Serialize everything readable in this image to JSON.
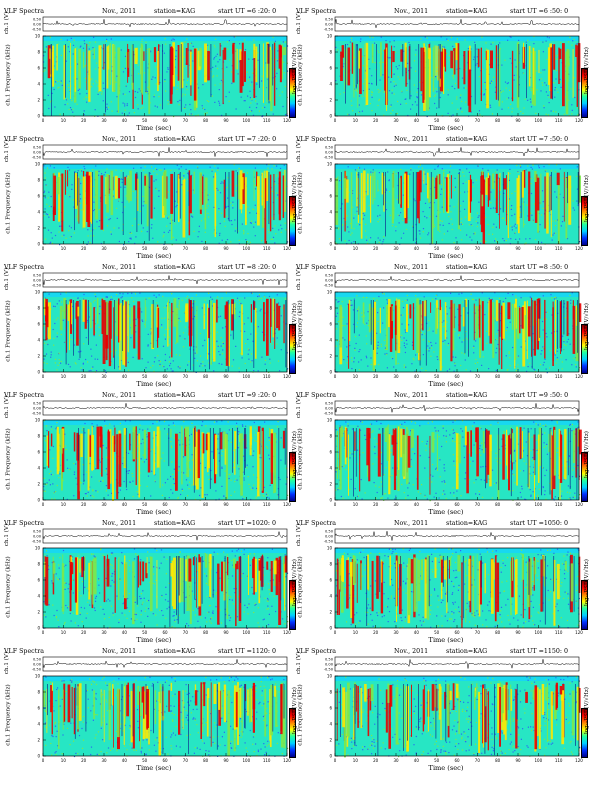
{
  "panel_titles": {
    "label": "VLF Spectra",
    "date": "Nov., 2011",
    "station": "station=KAG"
  },
  "axes": {
    "timeseries_ylabel": "ch.1 (V)",
    "spectrum_ylabel": "ch.1  Frequency (kHz)",
    "xlabel": "Time (sec)",
    "colorbar_label": "log₁₀PSD(V/√Hz)"
  },
  "colors": {
    "background_low": "#27e6c4",
    "band_top": "#18d8f0",
    "mid": "#7ee84a",
    "high": "#ffe800",
    "peak": "#e80000",
    "dark": "#0a1e8c"
  },
  "chart_data": [
    {
      "type": "heatmap",
      "title": "VLF Spectra  Nov., 2011  station=KAG  start UT =6 :20: 0",
      "start_ut": "start UT =6 :20: 0",
      "x_range": [
        0,
        120
      ],
      "y_range": [
        0,
        10
      ],
      "xlabel": "Time (sec)",
      "ylabel": "ch.1 Frequency (kHz)",
      "ts_ylim": [
        -0.5,
        0.5
      ],
      "xticks": [
        0,
        10,
        20,
        30,
        40,
        50,
        60,
        70,
        80,
        90,
        100,
        110,
        120
      ],
      "yticks": [
        0,
        2,
        4,
        6,
        8,
        10
      ],
      "ts_ticks": [
        "0.50",
        "0.00",
        "-0.50"
      ],
      "seed": 11
    },
    {
      "type": "heatmap",
      "title": "VLF Spectra  Nov., 2011  station=KAG  start UT =6 :50: 0",
      "start_ut": "start UT =6 :50: 0",
      "x_range": [
        0,
        120
      ],
      "y_range": [
        0,
        10
      ],
      "xlabel": "Time (sec)",
      "ylabel": "ch.1 Frequency (kHz)",
      "ts_ylim": [
        -0.5,
        0.5
      ],
      "xticks": [
        0,
        10,
        20,
        30,
        40,
        50,
        60,
        70,
        80,
        90,
        100,
        110,
        120
      ],
      "yticks": [
        0,
        2,
        4,
        6,
        8,
        10
      ],
      "ts_ticks": [
        "0.50",
        "0.00",
        "-0.50"
      ],
      "seed": 23
    },
    {
      "type": "heatmap",
      "title": "VLF Spectra  Nov., 2011  station=KAG  start UT =7 :20: 0",
      "start_ut": "start UT =7 :20: 0",
      "x_range": [
        0,
        120
      ],
      "y_range": [
        0,
        10
      ],
      "xlabel": "Time (sec)",
      "ylabel": "ch.1 Frequency (kHz)",
      "ts_ylim": [
        -0.5,
        0.5
      ],
      "xticks": [
        0,
        10,
        20,
        30,
        40,
        50,
        60,
        70,
        80,
        90,
        100,
        110,
        120
      ],
      "yticks": [
        0,
        2,
        4,
        6,
        8,
        10
      ],
      "ts_ticks": [
        "0.50",
        "0.00",
        "-0.50"
      ],
      "seed": 37
    },
    {
      "type": "heatmap",
      "title": "VLF Spectra  Nov., 2011  station=KAG  start UT =7 :50: 0",
      "start_ut": "start UT =7 :50: 0",
      "x_range": [
        0,
        120
      ],
      "y_range": [
        0,
        10
      ],
      "xlabel": "Time (sec)",
      "ylabel": "ch.1 Frequency (kHz)",
      "ts_ylim": [
        -0.5,
        0.5
      ],
      "xticks": [
        0,
        10,
        20,
        30,
        40,
        50,
        60,
        70,
        80,
        90,
        100,
        110,
        120
      ],
      "yticks": [
        0,
        2,
        4,
        6,
        8,
        10
      ],
      "ts_ticks": [
        "0.50",
        "0.00",
        "-0.50"
      ],
      "seed": 41
    },
    {
      "type": "heatmap",
      "title": "VLF Spectra  Nov., 2011  station=KAG  start UT =8 :20: 0",
      "start_ut": "start UT =8 :20: 0",
      "x_range": [
        0,
        120
      ],
      "y_range": [
        0,
        10
      ],
      "xlabel": "Time (sec)",
      "ylabel": "ch.1 Frequency (kHz)",
      "ts_ylim": [
        -0.5,
        0.5
      ],
      "xticks": [
        0,
        10,
        20,
        30,
        40,
        50,
        60,
        70,
        80,
        90,
        100,
        110,
        120
      ],
      "yticks": [
        0,
        2,
        4,
        6,
        8,
        10
      ],
      "ts_ticks": [
        "0.50",
        "0.00",
        "-0.50"
      ],
      "seed": 53
    },
    {
      "type": "heatmap",
      "title": "VLF Spectra  Nov., 2011  station=KAG  start UT =8 :50: 0",
      "start_ut": "start UT =8 :50: 0",
      "x_range": [
        0,
        120
      ],
      "y_range": [
        0,
        10
      ],
      "xlabel": "Time (sec)",
      "ylabel": "ch.1 Frequency (kHz)",
      "ts_ylim": [
        -0.5,
        0.5
      ],
      "xticks": [
        0,
        10,
        20,
        30,
        40,
        50,
        60,
        70,
        80,
        90,
        100,
        110,
        120
      ],
      "yticks": [
        0,
        2,
        4,
        6,
        8,
        10
      ],
      "ts_ticks": [
        "0.50",
        "0.00",
        "-0.50"
      ],
      "seed": 67
    },
    {
      "type": "heatmap",
      "title": "VLF Spectra  Nov., 2011  station=KAG  start UT =9 :20: 0",
      "start_ut": "start UT =9 :20: 0",
      "x_range": [
        0,
        120
      ],
      "y_range": [
        0,
        10
      ],
      "xlabel": "Time (sec)",
      "ylabel": "ch.1 Frequency (kHz)",
      "ts_ylim": [
        -0.5,
        0.5
      ],
      "xticks": [
        0,
        10,
        20,
        30,
        40,
        50,
        60,
        70,
        80,
        90,
        100,
        110,
        120
      ],
      "yticks": [
        0,
        2,
        4,
        6,
        8,
        10
      ],
      "ts_ticks": [
        "0.50",
        "0.00",
        "-0.50"
      ],
      "seed": 71
    },
    {
      "type": "heatmap",
      "title": "VLF Spectra  Nov., 2011  station=KAG  start UT =9 :50: 0",
      "start_ut": "start UT =9 :50: 0",
      "x_range": [
        0,
        120
      ],
      "y_range": [
        0,
        10
      ],
      "xlabel": "Time (sec)",
      "ylabel": "ch.1 Frequency (kHz)",
      "ts_ylim": [
        -0.5,
        0.5
      ],
      "xticks": [
        0,
        10,
        20,
        30,
        40,
        50,
        60,
        70,
        80,
        90,
        100,
        110,
        120
      ],
      "yticks": [
        0,
        2,
        4,
        6,
        8,
        10
      ],
      "ts_ticks": [
        "0.50",
        "0.00",
        "-0.50"
      ],
      "seed": 83
    },
    {
      "type": "heatmap",
      "title": "VLF Spectra  Nov., 2011  station=KAG  start UT =1020: 0",
      "start_ut": "start UT =1020: 0",
      "x_range": [
        0,
        120
      ],
      "y_range": [
        0,
        10
      ],
      "xlabel": "Time (sec)",
      "ylabel": "ch.1 Frequency (kHz)",
      "ts_ylim": [
        -0.5,
        0.5
      ],
      "xticks": [
        0,
        10,
        20,
        30,
        40,
        50,
        60,
        70,
        80,
        90,
        100,
        110,
        120
      ],
      "yticks": [
        0,
        2,
        4,
        6,
        8,
        10
      ],
      "ts_ticks": [
        "0.50",
        "0.00",
        "-0.50"
      ],
      "seed": 97
    },
    {
      "type": "heatmap",
      "title": "VLF Spectra  Nov., 2011  station=KAG  start UT =1050: 0",
      "start_ut": "start UT =1050: 0",
      "x_range": [
        0,
        120
      ],
      "y_range": [
        0,
        10
      ],
      "xlabel": "Time (sec)",
      "ylabel": "ch.1 Frequency (kHz)",
      "ts_ylim": [
        -0.5,
        0.5
      ],
      "xticks": [
        0,
        10,
        20,
        30,
        40,
        50,
        60,
        70,
        80,
        90,
        100,
        110,
        120
      ],
      "yticks": [
        0,
        2,
        4,
        6,
        8,
        10
      ],
      "ts_ticks": [
        "0.50",
        "0.00",
        "-0.50"
      ],
      "seed": 101
    },
    {
      "type": "heatmap",
      "title": "VLF Spectra  Nov., 2011  station=KAG  start UT =1120: 0",
      "start_ut": "start UT =1120: 0",
      "x_range": [
        0,
        120
      ],
      "y_range": [
        0,
        10
      ],
      "xlabel": "Time (sec)",
      "ylabel": "ch.1 Frequency (kHz)",
      "ts_ylim": [
        -0.5,
        0.5
      ],
      "xticks": [
        0,
        10,
        20,
        30,
        40,
        50,
        60,
        70,
        80,
        90,
        100,
        110,
        120
      ],
      "yticks": [
        0,
        2,
        4,
        6,
        8,
        10
      ],
      "ts_ticks": [
        "0.50",
        "0.00",
        "-0.50"
      ],
      "seed": 113
    },
    {
      "type": "heatmap",
      "title": "VLF Spectra  Nov., 2011  station=KAG  start UT =1150: 0",
      "start_ut": "start UT =1150: 0",
      "x_range": [
        0,
        120
      ],
      "y_range": [
        0,
        10
      ],
      "xlabel": "Time (sec)",
      "ylabel": "ch.1 Frequency (kHz)",
      "ts_ylim": [
        -0.5,
        0.5
      ],
      "xticks": [
        0,
        10,
        20,
        30,
        40,
        50,
        60,
        70,
        80,
        90,
        100,
        110,
        120
      ],
      "yticks": [
        0,
        2,
        4,
        6,
        8,
        10
      ],
      "ts_ticks": [
        "0.50",
        "0.00",
        "-0.50"
      ],
      "seed": 127
    }
  ]
}
